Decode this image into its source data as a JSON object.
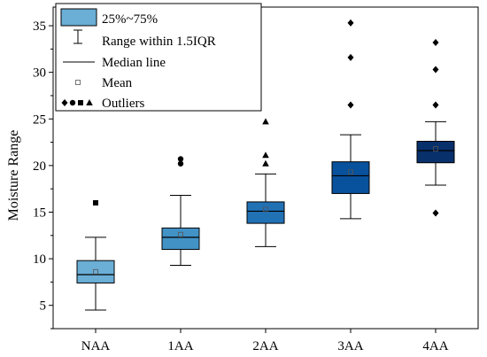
{
  "chart_data": {
    "type": "box",
    "ylabel": "Moisture Range",
    "xlabel": "",
    "ylim": [
      2.5,
      37
    ],
    "yticks": [
      5,
      10,
      15,
      20,
      25,
      30,
      35
    ],
    "categories": [
      "NAA",
      "1AA",
      "2AA",
      "3AA",
      "4AA"
    ],
    "boxes": [
      {
        "category": "NAA",
        "min": 4.5,
        "q1": 7.4,
        "median": 8.3,
        "q3": 9.8,
        "max": 12.3,
        "mean": 8.6,
        "outliers": [
          16.0
        ],
        "outlier_marker": "square",
        "color": "#6baed6"
      },
      {
        "category": "1AA",
        "min": 9.3,
        "q1": 11.0,
        "median": 12.3,
        "q3": 13.3,
        "max": 16.8,
        "mean": 12.6,
        "outliers": [
          20.2,
          20.7
        ],
        "outlier_marker": "circle",
        "color": "#4292c6"
      },
      {
        "category": "2AA",
        "min": 11.3,
        "q1": 13.8,
        "median": 15.1,
        "q3": 16.1,
        "max": 19.1,
        "mean": 15.3,
        "outliers": [
          20.2,
          21.1,
          24.7
        ],
        "outlier_marker": "triangle",
        "color": "#2171b5"
      },
      {
        "category": "3AA",
        "min": 14.3,
        "q1": 17.0,
        "median": 18.9,
        "q3": 20.4,
        "max": 23.3,
        "mean": 19.3,
        "outliers": [
          26.5,
          31.6,
          35.3
        ],
        "outlier_marker": "diamond",
        "color": "#08519c"
      },
      {
        "category": "4AA",
        "min": 17.9,
        "q1": 20.3,
        "median": 21.6,
        "q3": 22.6,
        "max": 24.7,
        "mean": 21.8,
        "outliers": [
          14.9,
          26.5,
          30.3,
          33.2
        ],
        "outlier_marker": "diamond",
        "color": "#08306b"
      }
    ],
    "legend": {
      "position": "top-left",
      "items": [
        "25%~75%",
        "Range within 1.5IQR",
        "Median line",
        "Mean",
        "Outliers"
      ]
    }
  }
}
